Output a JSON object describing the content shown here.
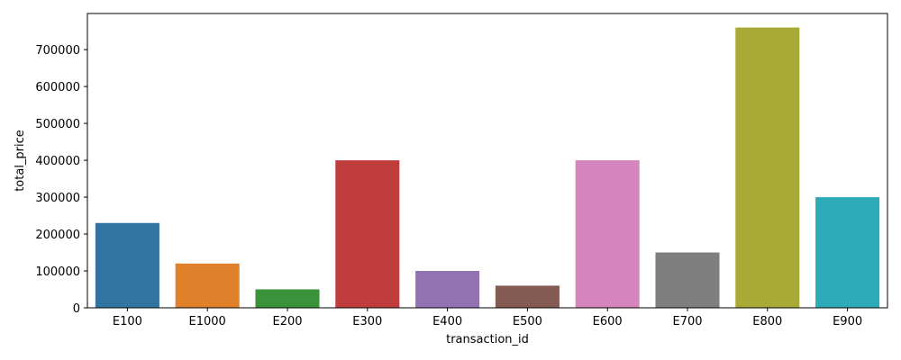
{
  "chart_data": {
    "type": "bar",
    "title": "",
    "xlabel": "transaction_id",
    "ylabel": "total_price",
    "categories": [
      "E100",
      "E1000",
      "E200",
      "E300",
      "E400",
      "E500",
      "E600",
      "E700",
      "E800",
      "E900"
    ],
    "values": [
      230000,
      120000,
      50000,
      400000,
      100000,
      60000,
      400000,
      150000,
      760000,
      300000
    ],
    "colors": [
      "#3274a1",
      "#e1812c",
      "#3a923a",
      "#c03d3e",
      "#9372b2",
      "#845b53",
      "#d684bd",
      "#7f7f7f",
      "#a9aa35",
      "#2eabb8"
    ],
    "ylim": [
      0,
      798000
    ],
    "yticks": [
      0,
      100000,
      200000,
      300000,
      400000,
      500000,
      600000,
      700000
    ],
    "grid": false,
    "legend": "none"
  }
}
